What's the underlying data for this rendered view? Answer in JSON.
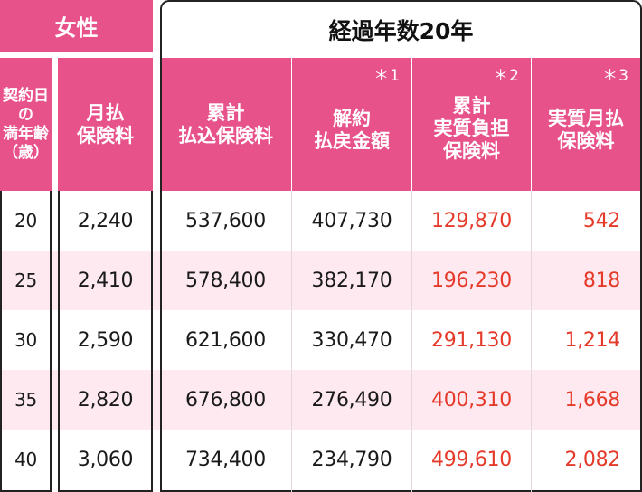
{
  "header": {
    "gender": "女性",
    "period_title": "経過年数20年"
  },
  "columns": {
    "age": [
      "契約日",
      "の",
      "満年齢",
      "（歳）"
    ],
    "monthly": [
      "月払",
      "保険料"
    ],
    "cumulative_paid": [
      "累計",
      "払込保険料"
    ],
    "refund": [
      "解約",
      "払戻金額"
    ],
    "refund_note": "＊1",
    "real_burden": [
      "累計",
      "実質負担",
      "保険料"
    ],
    "real_burden_note": "＊2",
    "real_monthly": [
      "実質月払",
      "保険料"
    ],
    "real_monthly_note": "＊3"
  },
  "rows": [
    {
      "age": "20",
      "monthly": "2,240",
      "cumulative_paid": "537,600",
      "refund": "407,730",
      "real_burden": "129,870",
      "real_monthly": "542"
    },
    {
      "age": "25",
      "monthly": "2,410",
      "cumulative_paid": "578,400",
      "refund": "382,170",
      "real_burden": "196,230",
      "real_monthly": "818"
    },
    {
      "age": "30",
      "monthly": "2,590",
      "cumulative_paid": "621,600",
      "refund": "330,470",
      "real_burden": "291,130",
      "real_monthly": "1,214"
    },
    {
      "age": "35",
      "monthly": "2,820",
      "cumulative_paid": "676,800",
      "refund": "276,490",
      "real_burden": "400,310",
      "real_monthly": "1,668"
    },
    {
      "age": "40",
      "monthly": "3,060",
      "cumulative_paid": "734,400",
      "refund": "234,790",
      "real_burden": "499,610",
      "real_monthly": "2,082"
    }
  ],
  "colors": {
    "header_pink": "#e8528a",
    "row_shade": "#fde9ef",
    "highlight_red": "#e53a2a",
    "border_dark": "#222222"
  }
}
